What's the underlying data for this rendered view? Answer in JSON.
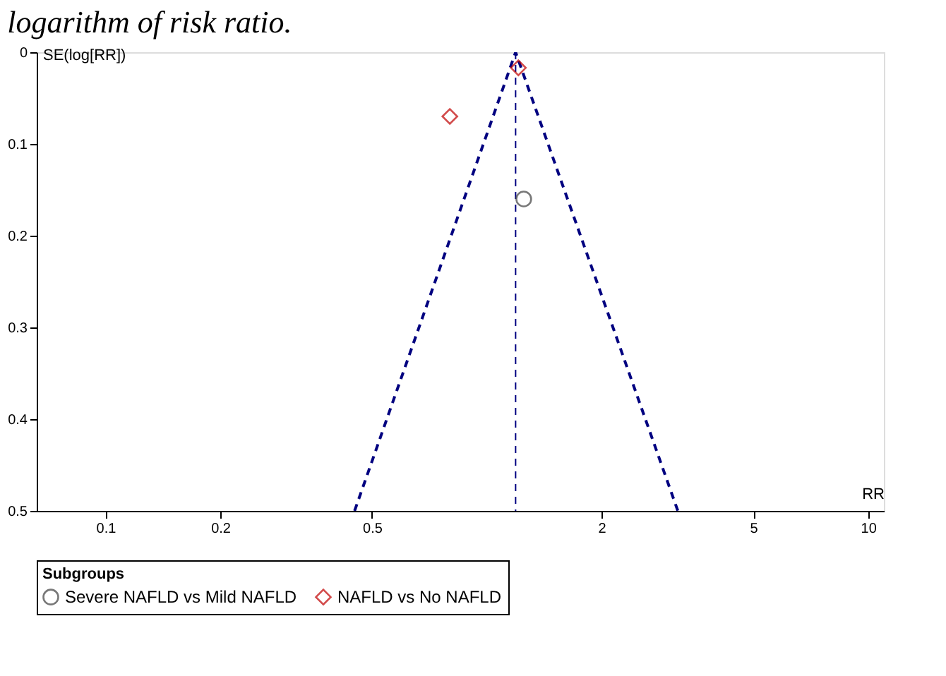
{
  "chart_data": {
    "type": "scatter",
    "title": "logarithm of risk ratio.",
    "xlabel": "RR",
    "ylabel": "SE(log[RR])",
    "legend_title": "Subgroups",
    "legend": "bottom",
    "log": "x",
    "grid": false,
    "xlim": [
      0.066,
      11
    ],
    "xticks": [
      0.1,
      0.2,
      0.5,
      2,
      5,
      10
    ],
    "ylim": [
      0.5,
      0
    ],
    "yticks": [
      0,
      0.1,
      0.2,
      0.3,
      0.4,
      0.5
    ],
    "ref_lines": [
      {
        "axis": "x",
        "value": 1.19,
        "color": "#000080",
        "line_style": "dashed"
      }
    ],
    "series": [
      {
        "type": "line",
        "color": "#000080",
        "line_style": "dashed",
        "x": [
          0.45,
          1.19,
          3.17
        ],
        "values": [
          0.5,
          0,
          0.5
        ]
      },
      {
        "name": "Severe NAFLD vs Mild NAFLD",
        "marker": "circle",
        "color": "#404040",
        "x": [
          1.25
        ],
        "values": [
          0.16
        ]
      },
      {
        "name": "NAFLD vs No NAFLD",
        "marker": "diamond",
        "color": "#c00000",
        "x": [
          1.21,
          0.8
        ],
        "values": [
          0.017,
          0.07
        ]
      }
    ]
  }
}
